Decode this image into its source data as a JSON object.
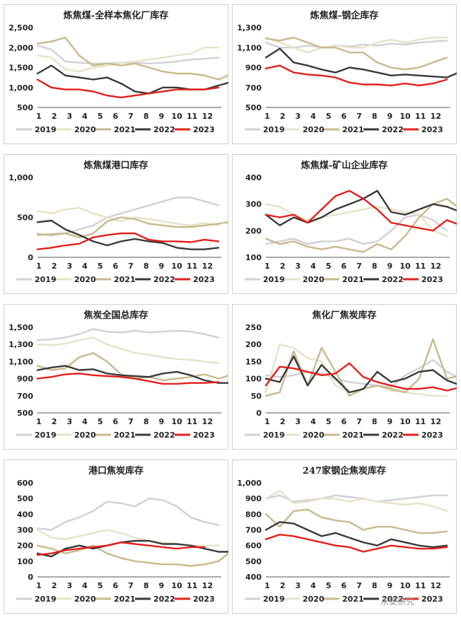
{
  "colors": {
    "2019": "#d0d0d6",
    "2020": "#e6e3c6",
    "2021": "#c9b98c",
    "2022": "#3a3a3a",
    "2023": "#e3201b"
  },
  "watermark": "永安研究",
  "chart_data": [
    {
      "type": "line",
      "title": "炼焦煤-全样本焦化厂库存",
      "x_ticks": [
        "1",
        "2",
        "3",
        "4",
        "5",
        "6",
        "7",
        "8",
        "9",
        "10",
        "11",
        "12"
      ],
      "y_ticks": [
        "2,500",
        "2,000",
        "1,500",
        "1,000",
        "500"
      ],
      "ylim": [
        500,
        2500
      ],
      "legend": [
        "2019",
        "2020",
        "2021",
        "2022",
        "2023"
      ],
      "series": [
        {
          "name": "2019",
          "values": [
            2050,
            1950,
            1650,
            1620,
            1600,
            1600,
            1620,
            1620,
            1600,
            1620,
            1650,
            1700,
            1720,
            1750
          ]
        },
        {
          "name": "2020",
          "values": [
            1800,
            1750,
            1450,
            1400,
            1500,
            1550,
            1620,
            1650,
            1700,
            1750,
            1800,
            1850,
            2000,
            2000
          ]
        },
        {
          "name": "2021",
          "values": [
            2100,
            2150,
            2250,
            1800,
            1550,
            1600,
            1550,
            1600,
            1500,
            1400,
            1350,
            1350,
            1300,
            1200,
            1350
          ]
        },
        {
          "name": "2022",
          "values": [
            1350,
            1550,
            1300,
            1250,
            1200,
            1250,
            1100,
            900,
            850,
            1000,
            1000,
            950,
            950,
            1050,
            1150
          ]
        },
        {
          "name": "2023",
          "values": [
            1200,
            1000,
            950,
            950,
            900,
            800,
            750,
            800,
            850,
            900,
            950,
            950,
            950,
            1000
          ]
        }
      ]
    },
    {
      "type": "line",
      "title": "炼焦煤-钢企库存",
      "x_ticks": [
        "1",
        "2",
        "3",
        "4",
        "5",
        "6",
        "7",
        "8",
        "9",
        "10",
        "11",
        "12"
      ],
      "y_ticks": [
        "1,300",
        "1,100",
        "900",
        "700",
        "500"
      ],
      "ylim": [
        500,
        1300
      ],
      "legend": [
        "2019",
        "2020",
        "2021",
        "2022",
        "2023"
      ],
      "series": [
        {
          "name": "2019",
          "values": [
            1150,
            1100,
            1100,
            1120,
            1100,
            1120,
            1110,
            1130,
            1120,
            1140,
            1130,
            1150,
            1160,
            1170
          ]
        },
        {
          "name": "2020",
          "values": [
            1200,
            1150,
            1100,
            1050,
            1100,
            1120,
            1100,
            1100,
            1150,
            1180,
            1150,
            1180,
            1200,
            1200
          ]
        },
        {
          "name": "2021",
          "values": [
            1190,
            1170,
            1200,
            1150,
            1100,
            1100,
            1050,
            1050,
            950,
            900,
            880,
            900,
            950,
            1000
          ]
        },
        {
          "name": "2022",
          "values": [
            1000,
            1090,
            950,
            920,
            880,
            850,
            900,
            880,
            850,
            820,
            830,
            820,
            810,
            800,
            860
          ]
        },
        {
          "name": "2023",
          "values": [
            890,
            920,
            850,
            830,
            820,
            800,
            750,
            730,
            730,
            720,
            740,
            720,
            740,
            780
          ]
        }
      ]
    },
    {
      "type": "line",
      "title": "炼焦煤港口库存",
      "x_ticks": [
        "1",
        "2",
        "3",
        "4",
        "5",
        "6",
        "7",
        "8",
        "9",
        "10",
        "11",
        "12"
      ],
      "y_ticks": [
        "1,000",
        "500",
        "0"
      ],
      "ylim": [
        0,
        1000
      ],
      "legend": [
        "2019",
        "2020",
        "2021",
        "2022",
        "2023"
      ],
      "series": [
        {
          "name": "2019",
          "values": [
            300,
            270,
            300,
            350,
            400,
            500,
            550,
            600,
            650,
            700,
            750,
            750,
            700,
            650
          ]
        },
        {
          "name": "2020",
          "values": [
            580,
            550,
            600,
            620,
            550,
            500,
            450,
            500,
            480,
            450,
            420,
            400,
            430,
            400
          ]
        },
        {
          "name": "2021",
          "values": [
            280,
            290,
            300,
            250,
            300,
            450,
            500,
            480,
            420,
            400,
            380,
            380,
            400,
            420,
            450
          ]
        },
        {
          "name": "2022",
          "values": [
            440,
            460,
            350,
            280,
            200,
            150,
            200,
            230,
            200,
            180,
            120,
            100,
            100,
            120
          ]
        },
        {
          "name": "2023",
          "values": [
            100,
            120,
            150,
            170,
            250,
            280,
            300,
            300,
            220,
            200,
            200,
            190,
            220,
            200
          ]
        }
      ]
    },
    {
      "type": "line",
      "title": "炼焦煤-矿山企业库存",
      "x_ticks": [
        "1",
        "2",
        "3",
        "4",
        "5",
        "6",
        "7",
        "8",
        "9",
        "10",
        "11",
        "12"
      ],
      "y_ticks": [
        "400",
        "300",
        "200",
        "100"
      ],
      "ylim": [
        100,
        400
      ],
      "legend": [
        "2019",
        "2020",
        "2021",
        "2022",
        "2023"
      ],
      "series": [
        {
          "name": "2019",
          "values": [
            150,
            160,
            170,
            150,
            160,
            160,
            170,
            150,
            160,
            200,
            250,
            260,
            240,
            200
          ]
        },
        {
          "name": "2020",
          "values": [
            300,
            290,
            260,
            240,
            250,
            260,
            270,
            280,
            290,
            280,
            270,
            260,
            200,
            180
          ]
        },
        {
          "name": "2021",
          "values": [
            170,
            150,
            160,
            140,
            130,
            140,
            130,
            120,
            150,
            130,
            180,
            250,
            300,
            320,
            280
          ]
        },
        {
          "name": "2022",
          "values": [
            260,
            220,
            250,
            230,
            250,
            280,
            300,
            320,
            350,
            270,
            260,
            280,
            300,
            290,
            270
          ]
        },
        {
          "name": "2023",
          "values": [
            260,
            250,
            260,
            230,
            280,
            330,
            350,
            320,
            280,
            230,
            220,
            210,
            200,
            240,
            220
          ]
        }
      ]
    },
    {
      "type": "line",
      "title": "焦炭全国总库存",
      "x_ticks": [
        "1",
        "2",
        "3",
        "4",
        "5",
        "6",
        "7",
        "8",
        "9",
        "10",
        "11",
        "12"
      ],
      "y_ticks": [
        "1,500",
        "1,300",
        "1,100",
        "900",
        "700",
        "500"
      ],
      "ylim": [
        500,
        1500
      ],
      "legend": [
        "2019",
        "2020",
        "2021",
        "2022",
        "2023"
      ],
      "series": [
        {
          "name": "2019",
          "values": [
            1350,
            1360,
            1380,
            1420,
            1480,
            1450,
            1440,
            1460,
            1440,
            1450,
            1460,
            1450,
            1420,
            1380
          ]
        },
        {
          "name": "2020",
          "values": [
            1300,
            1290,
            1310,
            1350,
            1380,
            1300,
            1250,
            1200,
            1180,
            1150,
            1130,
            1120,
            1100,
            1080
          ]
        },
        {
          "name": "2021",
          "values": [
            1050,
            1000,
            1020,
            1150,
            1200,
            1100,
            950,
            900,
            920,
            880,
            900,
            920,
            950,
            900,
            950
          ]
        },
        {
          "name": "2022",
          "values": [
            1000,
            1030,
            1050,
            1000,
            1010,
            960,
            940,
            930,
            920,
            960,
            980,
            940,
            880,
            850,
            850
          ]
        },
        {
          "name": "2023",
          "values": [
            900,
            920,
            950,
            960,
            940,
            930,
            920,
            900,
            870,
            840,
            840,
            850,
            850,
            860
          ]
        }
      ]
    },
    {
      "type": "line",
      "title": "焦化厂焦炭库存",
      "x_ticks": [
        "1",
        "2",
        "3",
        "4",
        "5",
        "6",
        "7",
        "8",
        "9",
        "10",
        "11",
        "12"
      ],
      "y_ticks": [
        "250",
        "200",
        "150",
        "100",
        "50",
        "0"
      ],
      "ylim": [
        0,
        250
      ],
      "legend": [
        "2019",
        "2020",
        "2021",
        "2022",
        "2023"
      ],
      "series": [
        {
          "name": "2019",
          "values": [
            110,
            105,
            110,
            120,
            115,
            100,
            90,
            85,
            80,
            75,
            110,
            130,
            155,
            120,
            100
          ]
        },
        {
          "name": "2020",
          "values": [
            60,
            200,
            190,
            160,
            150,
            80,
            60,
            70,
            80,
            65,
            60,
            55,
            50,
            50
          ]
        },
        {
          "name": "2021",
          "values": [
            50,
            60,
            180,
            80,
            190,
            120,
            50,
            70,
            80,
            70,
            60,
            100,
            215,
            100,
            110
          ]
        },
        {
          "name": "2022",
          "values": [
            100,
            90,
            165,
            80,
            140,
            100,
            60,
            70,
            120,
            90,
            100,
            120,
            125,
            95,
            80
          ]
        },
        {
          "name": "2023",
          "values": [
            80,
            135,
            130,
            120,
            110,
            115,
            145,
            105,
            90,
            80,
            70,
            70,
            75,
            65,
            75
          ]
        }
      ]
    },
    {
      "type": "line",
      "title": "港口焦炭库存",
      "x_ticks": [
        "1",
        "2",
        "3",
        "4",
        "5",
        "6",
        "7",
        "8",
        "9",
        "10",
        "11",
        "12"
      ],
      "y_ticks": [
        "600",
        "500",
        "400",
        "300",
        "200",
        "100",
        "0"
      ],
      "ylim": [
        0,
        600
      ],
      "legend": [
        "2019",
        "2020",
        "2021",
        "2022",
        "2023"
      ],
      "series": [
        {
          "name": "2019",
          "values": [
            310,
            300,
            350,
            380,
            420,
            480,
            470,
            450,
            500,
            490,
            450,
            380,
            350,
            330
          ]
        },
        {
          "name": "2020",
          "values": [
            300,
            250,
            240,
            260,
            280,
            300,
            280,
            250,
            230,
            220,
            210,
            200,
            200,
            200
          ]
        },
        {
          "name": "2021",
          "values": [
            200,
            180,
            150,
            170,
            200,
            150,
            120,
            100,
            90,
            80,
            80,
            70,
            80,
            100,
            170
          ]
        },
        {
          "name": "2022",
          "values": [
            150,
            130,
            180,
            200,
            180,
            200,
            220,
            230,
            230,
            210,
            210,
            200,
            180,
            160,
            160
          ]
        },
        {
          "name": "2023",
          "values": [
            140,
            150,
            170,
            180,
            190,
            200,
            220,
            210,
            200,
            190,
            180,
            190,
            190
          ]
        }
      ]
    },
    {
      "type": "line",
      "title": "247家钢企焦炭库存",
      "x_ticks": [
        "1",
        "2",
        "3",
        "4",
        "5",
        "6",
        "7",
        "8",
        "9",
        "10",
        "11",
        "12"
      ],
      "y_ticks": [
        "1,000",
        "900",
        "800",
        "700",
        "600",
        "500",
        "400"
      ],
      "ylim": [
        400,
        1000
      ],
      "legend": [
        "2019",
        "2020",
        "2021",
        "2022",
        "2023"
      ],
      "series": [
        {
          "name": "2019",
          "values": [
            900,
            920,
            880,
            890,
            900,
            920,
            910,
            900,
            880,
            890,
            900,
            910,
            920,
            920
          ]
        },
        {
          "name": "2020",
          "values": [
            900,
            950,
            870,
            880,
            900,
            900,
            880,
            900,
            880,
            870,
            860,
            870,
            850,
            820
          ]
        },
        {
          "name": "2021",
          "values": [
            800,
            720,
            820,
            830,
            780,
            760,
            750,
            700,
            720,
            720,
            700,
            680,
            680,
            690
          ]
        },
        {
          "name": "2022",
          "values": [
            700,
            750,
            740,
            700,
            660,
            680,
            650,
            620,
            600,
            640,
            620,
            600,
            590,
            600
          ]
        },
        {
          "name": "2023",
          "values": [
            640,
            670,
            660,
            640,
            620,
            600,
            590,
            560,
            580,
            600,
            590,
            580,
            580,
            590
          ]
        }
      ]
    }
  ]
}
